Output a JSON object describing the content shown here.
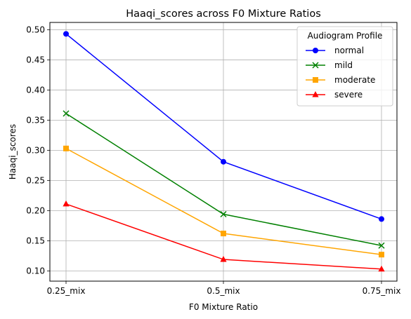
{
  "chart_data": {
    "type": "line",
    "title": "Haaqi_scores across F0 Mixture Ratios",
    "xlabel": "F0 Mixture Ratio",
    "ylabel": "Haaqi_scores",
    "categories": [
      "0.25_mix",
      "0.5_mix",
      "0.75_mix"
    ],
    "ylim": [
      0.083,
      0.512
    ],
    "yticks": [
      0.1,
      0.15,
      0.2,
      0.25,
      0.3,
      0.35,
      0.4,
      0.45,
      0.5
    ],
    "ytick_labels": [
      "0.10",
      "0.15",
      "0.20",
      "0.25",
      "0.30",
      "0.35",
      "0.40",
      "0.45",
      "0.50"
    ],
    "grid": true,
    "legend": {
      "title": "Audiogram Profile",
      "placement": "top-right"
    },
    "series": [
      {
        "name": "normal",
        "values": [
          0.493,
          0.281,
          0.186
        ],
        "color": "#0000ff",
        "marker": "circle"
      },
      {
        "name": "mild",
        "values": [
          0.361,
          0.194,
          0.142
        ],
        "color": "#008000",
        "marker": "x"
      },
      {
        "name": "moderate",
        "values": [
          0.303,
          0.162,
          0.127
        ],
        "color": "#ffa500",
        "marker": "square"
      },
      {
        "name": "severe",
        "values": [
          0.211,
          0.119,
          0.103
        ],
        "color": "#ff0000",
        "marker": "triangle"
      }
    ]
  }
}
